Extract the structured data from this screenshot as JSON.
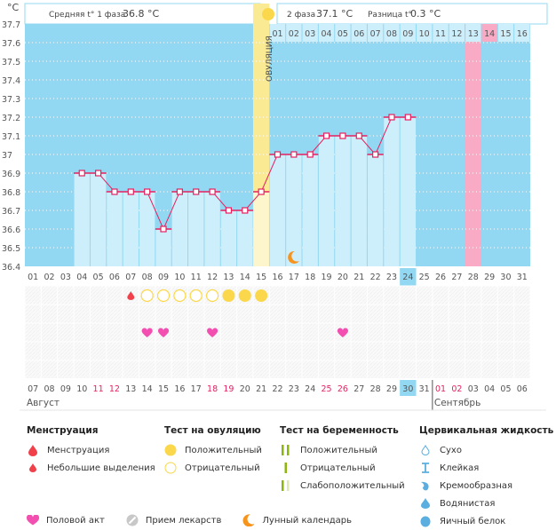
{
  "header": {
    "unit_label": "°C",
    "phase1_label": "Средняя t° 1 фаза",
    "phase1_value": "36.8 °C",
    "phase2_label": "2 фаза",
    "phase2_value": "37.1 °C",
    "diff_label": "Разница t°",
    "diff_value": "0.3 °C",
    "ovulation_label": "ОВУЛЯЦИЯ"
  },
  "colors": {
    "plot_bg": "#93d8f2",
    "bar_fill": "#cdeefb",
    "ovulation_bg": "#fbea94",
    "ovulation_bar": "#fdf6cc",
    "highlight_pink": "#f9aac4",
    "line": "#e6205f",
    "today": "#93d8f2",
    "ovulation_test": "#fbd84b",
    "heart": "#f24fb0",
    "menstruation": "#f0404a",
    "moon": "#f7941d",
    "weekend": "#e6205f"
  },
  "chart_data": {
    "type": "line",
    "title": "",
    "ylabel": "°C",
    "ylim": [
      36.4,
      37.7
    ],
    "yticks": [
      "37.7",
      "37.6",
      "37.5",
      "37.4",
      "37.3",
      "37.2",
      "37.1",
      "37",
      "36.9",
      "36.8",
      "36.7",
      "36.6",
      "36.5",
      "36.4"
    ],
    "cycle_days": [
      "01",
      "02",
      "03",
      "04",
      "05",
      "06",
      "07",
      "08",
      "09",
      "10",
      "11",
      "12",
      "13",
      "14",
      "15",
      "16",
      "17",
      "18",
      "19",
      "20",
      "21",
      "22",
      "23",
      "24",
      "25",
      "26",
      "27",
      "28",
      "29",
      "30",
      "31"
    ],
    "temperatures": [
      null,
      null,
      null,
      36.9,
      36.9,
      36.8,
      36.8,
      36.8,
      36.6,
      36.8,
      36.8,
      36.8,
      36.7,
      36.7,
      36.8,
      37.0,
      37.0,
      37.0,
      37.1,
      37.1,
      37.1,
      37.0,
      37.2,
      37.2,
      null,
      null,
      null,
      null,
      null,
      null,
      null
    ],
    "ovulation_day": 15,
    "current_day": 24,
    "highlight_day": 28,
    "phase2_day_numbers": [
      "01",
      "02",
      "03",
      "04",
      "05",
      "06",
      "07",
      "08",
      "09",
      "10",
      "11",
      "12",
      "13",
      "14",
      "15",
      "16"
    ],
    "phase2_highlight_index": 13,
    "moon_day": 17,
    "calendar_dates": [
      "07",
      "08",
      "09",
      "10",
      "11",
      "12",
      "13",
      "14",
      "15",
      "16",
      "17",
      "18",
      "19",
      "20",
      "21",
      "22",
      "23",
      "24",
      "25",
      "26",
      "27",
      "28",
      "29",
      "30",
      "31",
      "01",
      "02",
      "03",
      "04",
      "05",
      "06"
    ],
    "weekend_dates_idx": [
      4,
      5,
      11,
      12,
      18,
      19,
      25,
      26
    ],
    "today_date_idx": 23,
    "month_labels": [
      {
        "label": "Август",
        "start_idx": 0
      },
      {
        "label": "Сентябрь",
        "start_idx": 25
      }
    ],
    "markers": {
      "spotting_days": [
        7
      ],
      "ovulation_test_negative_days": [
        8,
        9,
        10,
        11,
        12
      ],
      "ovulation_test_positive_days": [
        13,
        14,
        15
      ],
      "intercourse_days": [
        8,
        9,
        12,
        20
      ]
    }
  },
  "legend": {
    "menstruation": {
      "title": "Менструация",
      "items": [
        "Менструация",
        "Небольшие выделения"
      ]
    },
    "ovulation_test": {
      "title": "Тест на овуляцию",
      "items": [
        "Положительный",
        "Отрицательный"
      ]
    },
    "pregnancy_test": {
      "title": "Тест на беременность",
      "items": [
        "Положительный",
        "Отрицательный",
        "Слабоположительный"
      ]
    },
    "cervical_fluid": {
      "title": "Цервикальная жидкость",
      "items": [
        "Сухо",
        "Клейкая",
        "Кремообразная",
        "Водянистая",
        "Яичный белок"
      ]
    },
    "other": [
      "Половой акт",
      "Прием лекарств",
      "Лунный календарь"
    ]
  }
}
